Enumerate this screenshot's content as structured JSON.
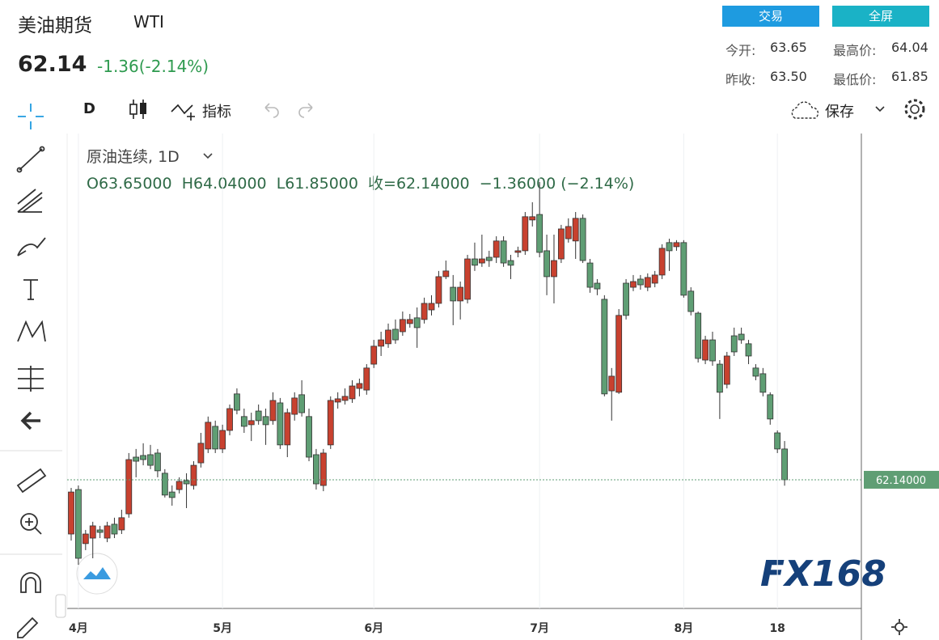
{
  "header": {
    "title": "美油期货",
    "symbol": "WTI",
    "price": "62.14",
    "change": "-1.36(-2.14%)",
    "buttons": [
      "交易",
      "全屏"
    ],
    "stats": [
      {
        "label": "今开:",
        "value": "63.65"
      },
      {
        "label": "最高价:",
        "value": "64.04"
      },
      {
        "label": "昨收:",
        "value": "63.50"
      },
      {
        "label": "最低价:",
        "value": "61.85"
      }
    ]
  },
  "toolbar": {
    "interval": "D",
    "indicators": "指标",
    "save": "保存"
  },
  "watermark": "FX168",
  "chart_data": {
    "type": "candlestick",
    "title": "原油连续, 1D",
    "ohlc_label": "O63.65000  H64.04000  L61.85000  收=62.14000  −1.36000 (−2.14%)",
    "last_value_label": "62.14000",
    "categories": [
      null,
      "4月",
      null,
      null,
      null,
      null,
      null,
      null,
      null,
      null,
      null,
      null,
      null,
      null,
      null,
      null,
      null,
      null,
      null,
      null,
      null,
      "5月",
      null,
      null,
      null,
      null,
      null,
      null,
      null,
      null,
      null,
      null,
      null,
      null,
      null,
      null,
      null,
      null,
      null,
      null,
      null,
      null,
      "6月",
      null,
      null,
      null,
      null,
      null,
      null,
      null,
      null,
      null,
      null,
      null,
      null,
      null,
      null,
      null,
      null,
      null,
      null,
      null,
      null,
      null,
      null,
      "7月",
      null,
      null,
      null,
      null,
      null,
      null,
      null,
      null,
      null,
      null,
      null,
      null,
      null,
      null,
      null,
      null,
      null,
      null,
      null,
      "8月",
      null,
      null,
      null,
      null,
      null,
      null,
      null,
      null,
      null,
      null,
      null,
      null,
      "18",
      null
    ],
    "open": [
      59.48,
      61.66,
      59.01,
      59.28,
      59.68,
      59.28,
      59.96,
      59.68,
      60.47,
      63.25,
      63.33,
      63.37,
      63.45,
      62.46,
      61.54,
      61.66,
      62.1,
      61.86,
      62.97,
      63.65,
      64.76,
      63.65,
      64.56,
      66.35,
      65.24,
      64.84,
      65.51,
      65.24,
      65.04,
      65.91,
      63.85,
      65.35,
      66.31,
      65.24,
      63.37,
      61.86,
      63.85,
      65.95,
      66.03,
      66.11,
      66.62,
      66.54,
      67.81,
      68.69,
      68.81,
      69.52,
      69.4,
      69.8,
      70.08,
      70.0,
      70.47,
      70.79,
      72.1,
      71.58,
      70.91,
      70.99,
      72.97,
      72.77,
      73.05,
      73.05,
      73.85,
      72.89,
      73.29,
      73.37,
      74.88,
      75.15,
      73.37,
      72.1,
      72.97,
      73.96,
      73.85,
      74.96,
      72.77,
      71.78,
      70.99,
      66.5,
      66.43,
      71.78,
      71.58,
      71.98,
      71.58,
      71.78,
      72.18,
      73.77,
      73.57,
      73.77,
      71.39,
      70.31,
      68.01,
      69.0,
      67.81,
      66.82,
      69.2,
      69.28,
      68.81,
      67.62,
      67.34,
      66.31,
      64.44,
      63.65
    ],
    "high": [
      61.74,
      61.86,
      59.68,
      60.08,
      59.88,
      60.08,
      60.28,
      60.67,
      63.45,
      63.65,
      63.93,
      63.85,
      63.65,
      62.66,
      61.86,
      62.26,
      62.46,
      63.05,
      64.44,
      65.24,
      65.04,
      64.84,
      65.83,
      66.62,
      65.63,
      65.43,
      65.83,
      65.63,
      66.43,
      66.15,
      65.63,
      66.43,
      67.02,
      65.63,
      63.65,
      63.65,
      66.23,
      66.43,
      66.62,
      67.02,
      67.1,
      67.81,
      69.0,
      69.4,
      69.8,
      70.0,
      70.39,
      70.27,
      70.59,
      71.07,
      71.19,
      72.38,
      72.89,
      72.18,
      71.86,
      73.17,
      73.77,
      74.16,
      73.37,
      74.08,
      74.08,
      73.17,
      73.57,
      75.27,
      75.75,
      76.74,
      74.16,
      74.16,
      74.64,
      74.96,
      75.27,
      75.15,
      72.97,
      71.98,
      71.19,
      67.62,
      70.51,
      71.98,
      72.18,
      72.18,
      72.26,
      72.38,
      73.69,
      73.96,
      73.89,
      73.89,
      71.58,
      70.39,
      69.2,
      69.4,
      68.01,
      68.41,
      69.6,
      69.6,
      69.0,
      67.81,
      67.62,
      66.43,
      64.56,
      64.04
    ],
    "low": [
      59.16,
      57.97,
      58.69,
      58.29,
      59.28,
      59.08,
      59.28,
      59.48,
      60.28,
      62.26,
      62.85,
      62.66,
      62.26,
      61.27,
      60.87,
      61.47,
      60.75,
      61.66,
      62.74,
      63.45,
      63.45,
      63.45,
      64.32,
      65.35,
      64.44,
      64.04,
      64.84,
      63.85,
      64.84,
      63.65,
      63.25,
      65.04,
      65.24,
      63.05,
      61.66,
      61.58,
      63.65,
      65.63,
      65.83,
      65.91,
      66.23,
      66.31,
      67.62,
      68.21,
      68.61,
      68.81,
      69.2,
      69.6,
      68.61,
      69.8,
      70.2,
      70.59,
      71.98,
      69.72,
      70.0,
      70.79,
      72.38,
      72.58,
      72.58,
      72.77,
      72.58,
      71.98,
      73.05,
      73.17,
      74.56,
      73.05,
      71.19,
      70.79,
      72.77,
      73.77,
      72.97,
      72.77,
      71.31,
      71.19,
      66.23,
      65.04,
      66.35,
      70.0,
      71.39,
      71.46,
      71.39,
      71.58,
      71.98,
      72.38,
      73.37,
      71.07,
      70.2,
      67.89,
      67.81,
      67.73,
      65.12,
      66.62,
      68.21,
      68.81,
      67.81,
      67.02,
      66.23,
      64.84,
      63.45,
      61.85
    ],
    "close": [
      61.54,
      58.29,
      59.48,
      59.88,
      59.56,
      59.88,
      59.48,
      60.28,
      63.13,
      63.05,
      63.13,
      62.85,
      62.58,
      61.39,
      61.27,
      62.06,
      61.94,
      62.85,
      63.93,
      64.96,
      63.65,
      64.56,
      65.63,
      65.55,
      64.76,
      65.04,
      65.04,
      64.84,
      66.03,
      63.85,
      65.43,
      66.15,
      65.43,
      63.25,
      61.94,
      63.45,
      66.03,
      66.11,
      66.23,
      66.74,
      66.86,
      67.62,
      68.69,
      69.0,
      69.48,
      69.0,
      70.0,
      70.0,
      69.6,
      70.79,
      70.79,
      72.1,
      72.38,
      70.91,
      71.58,
      72.97,
      72.66,
      72.97,
      72.89,
      73.85,
      72.77,
      72.66,
      73.37,
      75.04,
      75.04,
      73.29,
      72.1,
      72.89,
      74.44,
      74.56,
      74.96,
      72.89,
      71.58,
      71.5,
      66.35,
      67.22,
      70.2,
      70.2,
      71.86,
      71.7,
      72.06,
      72.18,
      73.49,
      73.37,
      73.77,
      71.19,
      70.39,
      68.09,
      69.0,
      67.97,
      66.43,
      68.21,
      68.41,
      69.0,
      68.21,
      67.22,
      66.43,
      65.12,
      63.65,
      62.14
    ],
    "up_color": "#c8412f",
    "down_color": "#5f9e74",
    "ylim": [
      55.83,
      79.12
    ],
    "grid": true
  }
}
